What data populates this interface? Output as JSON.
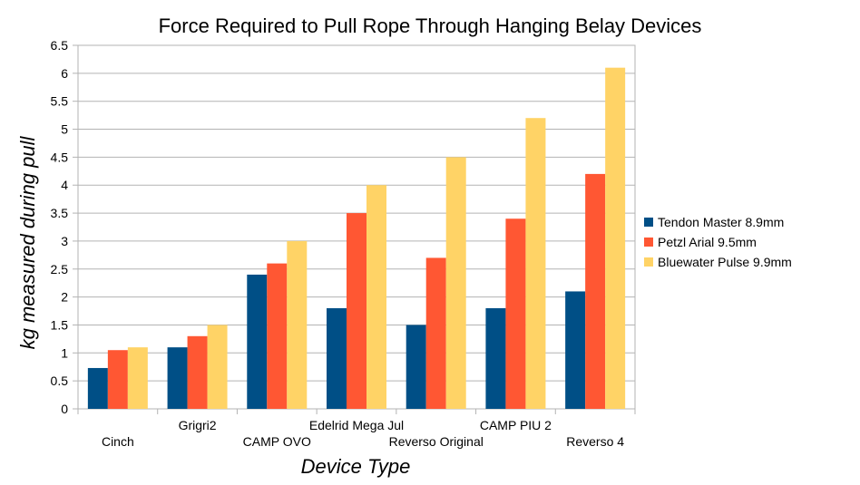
{
  "chart_data": {
    "type": "bar",
    "title": "Force Required to Pull Rope Through Hanging Belay Devices",
    "xlabel": "Device Type",
    "ylabel": "kg measured during pull",
    "categories": [
      "Cinch",
      "Grigri2",
      "CAMP OVO",
      "Edelrid Mega Jul",
      "Reverso Original",
      "CAMP PIU 2",
      "Reverso 4"
    ],
    "series": [
      {
        "name": "Tendon Master 8.9mm",
        "color": "#004f86",
        "values": [
          0.73,
          1.1,
          2.4,
          1.8,
          1.5,
          1.8,
          2.1
        ]
      },
      {
        "name": "Petzl Arial 9.5mm",
        "color": "#ff5733",
        "values": [
          1.05,
          1.3,
          2.6,
          3.5,
          2.7,
          3.4,
          4.2
        ]
      },
      {
        "name": "Bluewater Pulse 9.9mm",
        "color": "#ffd366",
        "values": [
          1.1,
          1.5,
          3.0,
          4.0,
          4.5,
          5.2,
          6.1
        ]
      }
    ],
    "ylim": [
      0,
      6.5
    ],
    "yticks": [
      "0",
      "0.5",
      "1",
      "1.5",
      "2",
      "2.5",
      "3",
      "3.5",
      "4",
      "4.5",
      "5",
      "5.5",
      "6",
      "6.5"
    ],
    "grid": true,
    "legend": "right"
  }
}
